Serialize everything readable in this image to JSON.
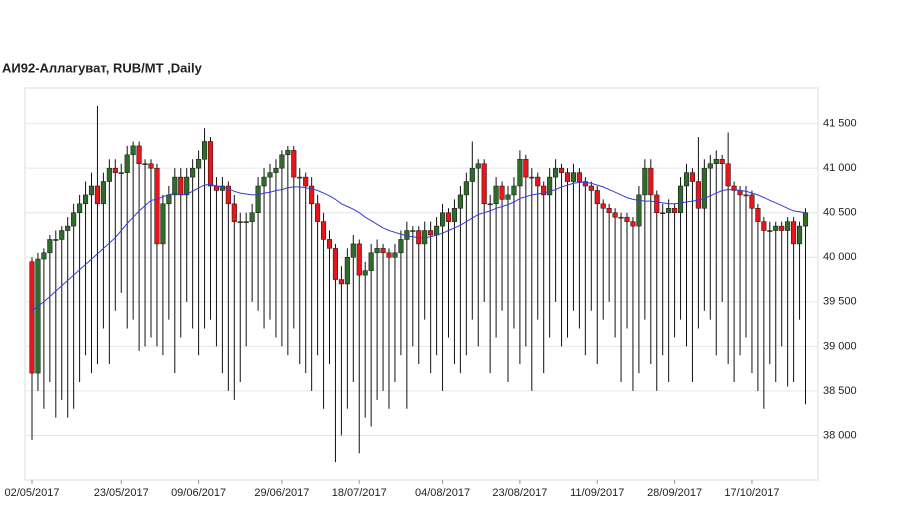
{
  "chart_data": {
    "type": "candlestick",
    "title": "АИ92-Аллагуват,  RUB/MT ,Daily",
    "up_color": "#2f6b2a",
    "down_color": "#e8161b",
    "ma_color": "#3a3ad6",
    "grid": true,
    "ylim": [
      37500,
      41900
    ],
    "yticks": [
      {
        "value": 38000,
        "label": "38 000"
      },
      {
        "value": 38500,
        "label": "38 500"
      },
      {
        "value": 39000,
        "label": "39 000"
      },
      {
        "value": 39500,
        "label": "39 500"
      },
      {
        "value": 40000,
        "label": "40 000"
      },
      {
        "value": 40500,
        "label": "40 500"
      },
      {
        "value": 41000,
        "label": "41 000"
      },
      {
        "value": 41500,
        "label": "41 500"
      }
    ],
    "categories": [
      "02/05/2017",
      null,
      null,
      null,
      null,
      null,
      null,
      null,
      null,
      null,
      null,
      null,
      null,
      null,
      null,
      "23/05/2017",
      null,
      null,
      null,
      null,
      null,
      null,
      null,
      null,
      null,
      null,
      null,
      null,
      "09/06/2017",
      null,
      null,
      null,
      null,
      null,
      null,
      null,
      null,
      null,
      null,
      null,
      null,
      null,
      "29/06/2017",
      null,
      null,
      null,
      null,
      null,
      null,
      null,
      null,
      null,
      null,
      null,
      null,
      "18/07/2017",
      null,
      null,
      null,
      null,
      null,
      null,
      null,
      null,
      null,
      null,
      null,
      null,
      null,
      "04/08/2017",
      null,
      null,
      null,
      null,
      null,
      null,
      null,
      null,
      null,
      null,
      null,
      null,
      "23/08/2017",
      null,
      null,
      null,
      null,
      null,
      null,
      null,
      null,
      null,
      null,
      null,
      null,
      "11/09/2017",
      null,
      null,
      null,
      null,
      null,
      null,
      null,
      null,
      null,
      null,
      null,
      null,
      "28/09/2017",
      null,
      null,
      null,
      null,
      null,
      null,
      null,
      null,
      null,
      null,
      null,
      null,
      "17/10/2017",
      null,
      null,
      null,
      null,
      null,
      null,
      null,
      null,
      null
    ],
    "open": [
      39950,
      38700,
      39980,
      40050,
      40200,
      40200,
      40300,
      40350,
      40500,
      40600,
      40700,
      40800,
      40600,
      40850,
      41000,
      40950,
      40950,
      41150,
      41250,
      41050,
      41050,
      41000,
      40150,
      40600,
      40700,
      40900,
      40700,
      40900,
      41000,
      41100,
      41300,
      40800,
      40750,
      40800,
      40600,
      40400,
      40400,
      40400,
      40500,
      40800,
      40900,
      40950,
      41000,
      41150,
      41200,
      40900,
      40900,
      40800,
      40600,
      40400,
      40200,
      40100,
      39750,
      39700,
      40000,
      40150,
      39800,
      39850,
      40050,
      40100,
      40050,
      40000,
      40050,
      40200,
      40300,
      40300,
      40150,
      40300,
      40250,
      40350,
      40500,
      40400,
      40550,
      40700,
      40850,
      41000,
      41050,
      40600,
      40600,
      40800,
      40650,
      40700,
      40800,
      41100,
      40900,
      40900,
      40800,
      40700,
      40900,
      41000,
      40950,
      40850,
      40950,
      40850,
      40800,
      40750,
      40600,
      40550,
      40500,
      40450,
      40450,
      40400,
      40350,
      40700,
      41000,
      40700,
      40500,
      40500,
      40550,
      40500,
      40800,
      40950,
      40850,
      40550,
      41000,
      41050,
      41100,
      41050,
      40800,
      40750,
      40700,
      40700,
      40550,
      40400,
      40300,
      40300,
      40350,
      40300,
      40400,
      40150,
      40350
    ],
    "high": [
      40000,
      40050,
      40100,
      40250,
      40300,
      40350,
      40450,
      40600,
      40700,
      40850,
      40950,
      41700,
      40950,
      41100,
      41100,
      41050,
      41250,
      41300,
      41300,
      41100,
      41100,
      41050,
      40700,
      40800,
      41000,
      41000,
      41000,
      41100,
      41200,
      41450,
      41350,
      40900,
      40900,
      40850,
      40700,
      40500,
      40500,
      40600,
      40900,
      41000,
      41050,
      41100,
      41200,
      41250,
      41250,
      41000,
      40950,
      40900,
      40700,
      40500,
      40300,
      40150,
      39900,
      40100,
      40250,
      40200,
      39950,
      40150,
      40200,
      40150,
      40100,
      40150,
      40300,
      40400,
      40350,
      40350,
      40400,
      40400,
      40450,
      40600,
      40550,
      40650,
      40800,
      40950,
      41300,
      41100,
      41100,
      40700,
      40900,
      40850,
      40800,
      40900,
      41200,
      41150,
      41000,
      40950,
      40850,
      41000,
      41100,
      41050,
      41000,
      41050,
      41000,
      40900,
      40850,
      40800,
      40650,
      40600,
      40550,
      40500,
      40500,
      40450,
      40800,
      41100,
      41100,
      40750,
      40600,
      40650,
      40600,
      40900,
      41050,
      41000,
      41350,
      41100,
      41150,
      41200,
      41150,
      41400,
      40850,
      40800,
      40800,
      40750,
      40600,
      40450,
      40400,
      40400,
      40400,
      40450,
      40450,
      40400,
      40550
    ],
    "low": [
      37950,
      38500,
      38300,
      38600,
      38200,
      38400,
      38200,
      38300,
      38600,
      38900,
      38700,
      38800,
      39200,
      38800,
      39400,
      39600,
      39200,
      39300,
      38950,
      39000,
      39100,
      39000,
      38900,
      39300,
      38700,
      39100,
      39500,
      39200,
      38900,
      39200,
      39300,
      39000,
      38700,
      38500,
      38400,
      38600,
      39000,
      39500,
      39400,
      39200,
      39300,
      39100,
      39000,
      38900,
      39200,
      38800,
      38700,
      38500,
      38900,
      38300,
      38800,
      37700,
      38000,
      38300,
      38600,
      37800,
      38200,
      38100,
      38400,
      38500,
      38300,
      38600,
      38900,
      38300,
      39000,
      38800,
      39300,
      38700,
      38900,
      38500,
      39100,
      38800,
      38700,
      38900,
      39300,
      39000,
      39500,
      38700,
      39100,
      39400,
      38600,
      39200,
      38800,
      39000,
      38500,
      39300,
      38700,
      39100,
      39500,
      39000,
      39100,
      39400,
      39200,
      38900,
      39400,
      38800,
      39300,
      39500,
      39100,
      38600,
      39200,
      38500,
      38700,
      39300,
      38800,
      38500,
      38900,
      38600,
      39100,
      39300,
      39000,
      38600,
      39200,
      39400,
      39300,
      38900,
      39500,
      38800,
      38600,
      38900,
      39100,
      38700,
      38500,
      38300,
      38800,
      38600,
      39000,
      38550,
      38600,
      39300,
      38350
    ],
    "close": [
      38700,
      39980,
      40050,
      40200,
      40200,
      40300,
      40350,
      40500,
      40600,
      40700,
      40800,
      40600,
      40850,
      41000,
      40950,
      40950,
      41150,
      41250,
      41050,
      41050,
      41000,
      40150,
      40600,
      40700,
      40900,
      40700,
      40900,
      41000,
      41100,
      41300,
      40800,
      40750,
      40800,
      40600,
      40400,
      40400,
      40400,
      40500,
      40800,
      40900,
      40950,
      41000,
      41150,
      41200,
      40900,
      40900,
      40800,
      40600,
      40400,
      40200,
      40100,
      39750,
      39700,
      40000,
      40150,
      39800,
      39850,
      40050,
      40100,
      40050,
      40000,
      40050,
      40200,
      40300,
      40300,
      40150,
      40300,
      40250,
      40350,
      40500,
      40400,
      40550,
      40700,
      40850,
      41000,
      41050,
      40600,
      40600,
      40800,
      40650,
      40700,
      40800,
      41100,
      40900,
      40900,
      40800,
      40700,
      40900,
      41000,
      40950,
      40850,
      40950,
      40850,
      40800,
      40750,
      40600,
      40550,
      40500,
      40450,
      40450,
      40400,
      40350,
      40700,
      41000,
      40700,
      40500,
      40500,
      40550,
      40500,
      40800,
      40950,
      40850,
      40550,
      41000,
      41050,
      41100,
      41050,
      40800,
      40750,
      40700,
      40700,
      40550,
      40400,
      40300,
      40300,
      40350,
      40300,
      40400,
      40150,
      40350,
      40500
    ],
    "ma": [
      39400,
      39450,
      39500,
      39560,
      39620,
      39680,
      39740,
      39800,
      39860,
      39920,
      39980,
      40040,
      40100,
      40160,
      40220,
      40300,
      40380,
      40450,
      40520,
      40580,
      40640,
      40650,
      40680,
      40700,
      40720,
      40700,
      40710,
      40740,
      40780,
      40810,
      40820,
      40800,
      40790,
      40770,
      40740,
      40720,
      40710,
      40700,
      40700,
      40720,
      40730,
      40750,
      40760,
      40780,
      40790,
      40790,
      40780,
      40770,
      40750,
      40720,
      40690,
      40650,
      40600,
      40570,
      40540,
      40500,
      40450,
      40410,
      40370,
      40330,
      40300,
      40280,
      40260,
      40240,
      40230,
      40220,
      40220,
      40230,
      40250,
      40270,
      40300,
      40330,
      40360,
      40400,
      40440,
      40480,
      40500,
      40520,
      40550,
      40570,
      40590,
      40620,
      40660,
      40680,
      40700,
      40710,
      40720,
      40740,
      40760,
      40790,
      40810,
      40830,
      40840,
      40840,
      40830,
      40810,
      40790,
      40760,
      40730,
      40700,
      40670,
      40650,
      40640,
      40630,
      40630,
      40620,
      40610,
      40600,
      40600,
      40610,
      40620,
      40630,
      40640,
      40660,
      40690,
      40720,
      40750,
      40760,
      40760,
      40750,
      40740,
      40720,
      40700,
      40670,
      40640,
      40610,
      40580,
      40550,
      40520,
      40510,
      40500
    ]
  }
}
